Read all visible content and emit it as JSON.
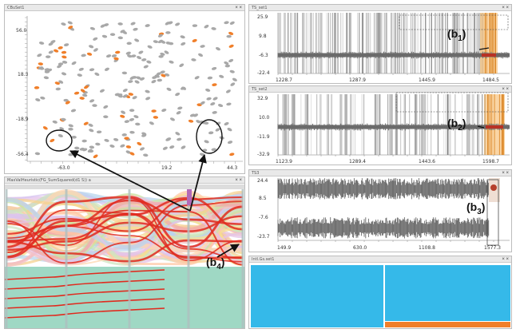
{
  "panels": {
    "scatter": {
      "title": "CBuSet1"
    },
    "ts1": {
      "title": "TS_set1"
    },
    "ts2": {
      "title": "TS_set2"
    },
    "ts3": {
      "title": "TS3"
    },
    "parallel": {
      "title": "MaxValHeuristic(FG_SumSquared(d1 S)) a"
    },
    "bottom": {
      "title": "Intl.Gs.set1"
    }
  },
  "scatter_axes": {
    "y_ticks": [
      "56.0",
      "18.3",
      "-18.9",
      "-56.4"
    ],
    "x_ticks": [
      "-63.0",
      "19.2",
      "44.3"
    ]
  },
  "ts1_axes": {
    "y_ticks": [
      "25.9",
      "9.8",
      "-6.3",
      "-22.4"
    ],
    "x_ticks": [
      "1228.7",
      "1287.9",
      "1445.9",
      "1484.5"
    ]
  },
  "ts2_axes": {
    "y_ticks": [
      "32.9",
      "10.0",
      "-11.9",
      "-32.9"
    ],
    "x_ticks": [
      "1123.9",
      "1289.4",
      "1443.6",
      "1598.7"
    ]
  },
  "ts3_axes": {
    "y_ticks": [
      "24.4",
      "8.5",
      "-7.6",
      "-23.7"
    ],
    "x_ticks": [
      "149.9",
      "630.0",
      "1108.8",
      "1577.3"
    ]
  },
  "annotations": {
    "b1": {
      "main": "(b",
      "sub": "1",
      "close": ")"
    },
    "b2": {
      "main": "(b",
      "sub": "2",
      "close": ")"
    },
    "b3": {
      "main": "(b",
      "sub": "3",
      "close": ")"
    },
    "b4": {
      "main": "(b",
      "sub": "4",
      "close": ")"
    }
  },
  "close_icon": "× ×",
  "colors": {
    "orange": "#f07f2a",
    "gray_dot": "#a8a8a8",
    "signal": "#6b6b6b",
    "blue_panel": "#35b9e9",
    "teal_panel": "#9fd8c4",
    "red_line": "#e12a1e"
  }
}
